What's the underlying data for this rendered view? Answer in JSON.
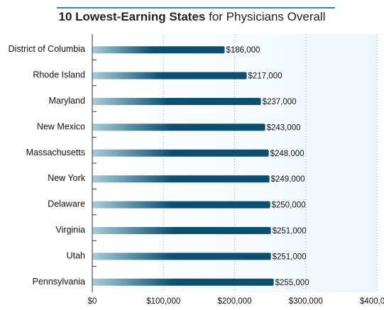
{
  "chart_data": {
    "type": "bar",
    "orientation": "horizontal",
    "title_bold": "10 Lowest-Earning States",
    "title_rest": " for Physicians Overall",
    "categories": [
      "District of Columbia",
      "Rhode Island",
      "Maryland",
      "New Mexico",
      "Massachusetts",
      "New York",
      "Delaware",
      "Virginia",
      "Utah",
      "Pennsylvania"
    ],
    "values": [
      186000,
      217000,
      237000,
      243000,
      248000,
      249000,
      250000,
      251000,
      251000,
      255000
    ],
    "value_labels": [
      "$186,000",
      "$217,000",
      "$237,000",
      "$243,000",
      "$248,000",
      "$249,000",
      "$250,000",
      "$251,000",
      "$251,000",
      "$255,000"
    ],
    "xlim": [
      0,
      400000
    ],
    "xticks": [
      0,
      100000,
      200000,
      300000,
      400000
    ],
    "xtick_labels": [
      "$0",
      "$100,000",
      "$200,000",
      "$300,000",
      "$400,000"
    ],
    "grid": true,
    "legend": "none",
    "colors": {
      "bar_dark": "#0b4f72",
      "bar_light": "#a8ccda",
      "plot_bg": "#eef7fc",
      "title_rule": "#2f86b8"
    }
  }
}
